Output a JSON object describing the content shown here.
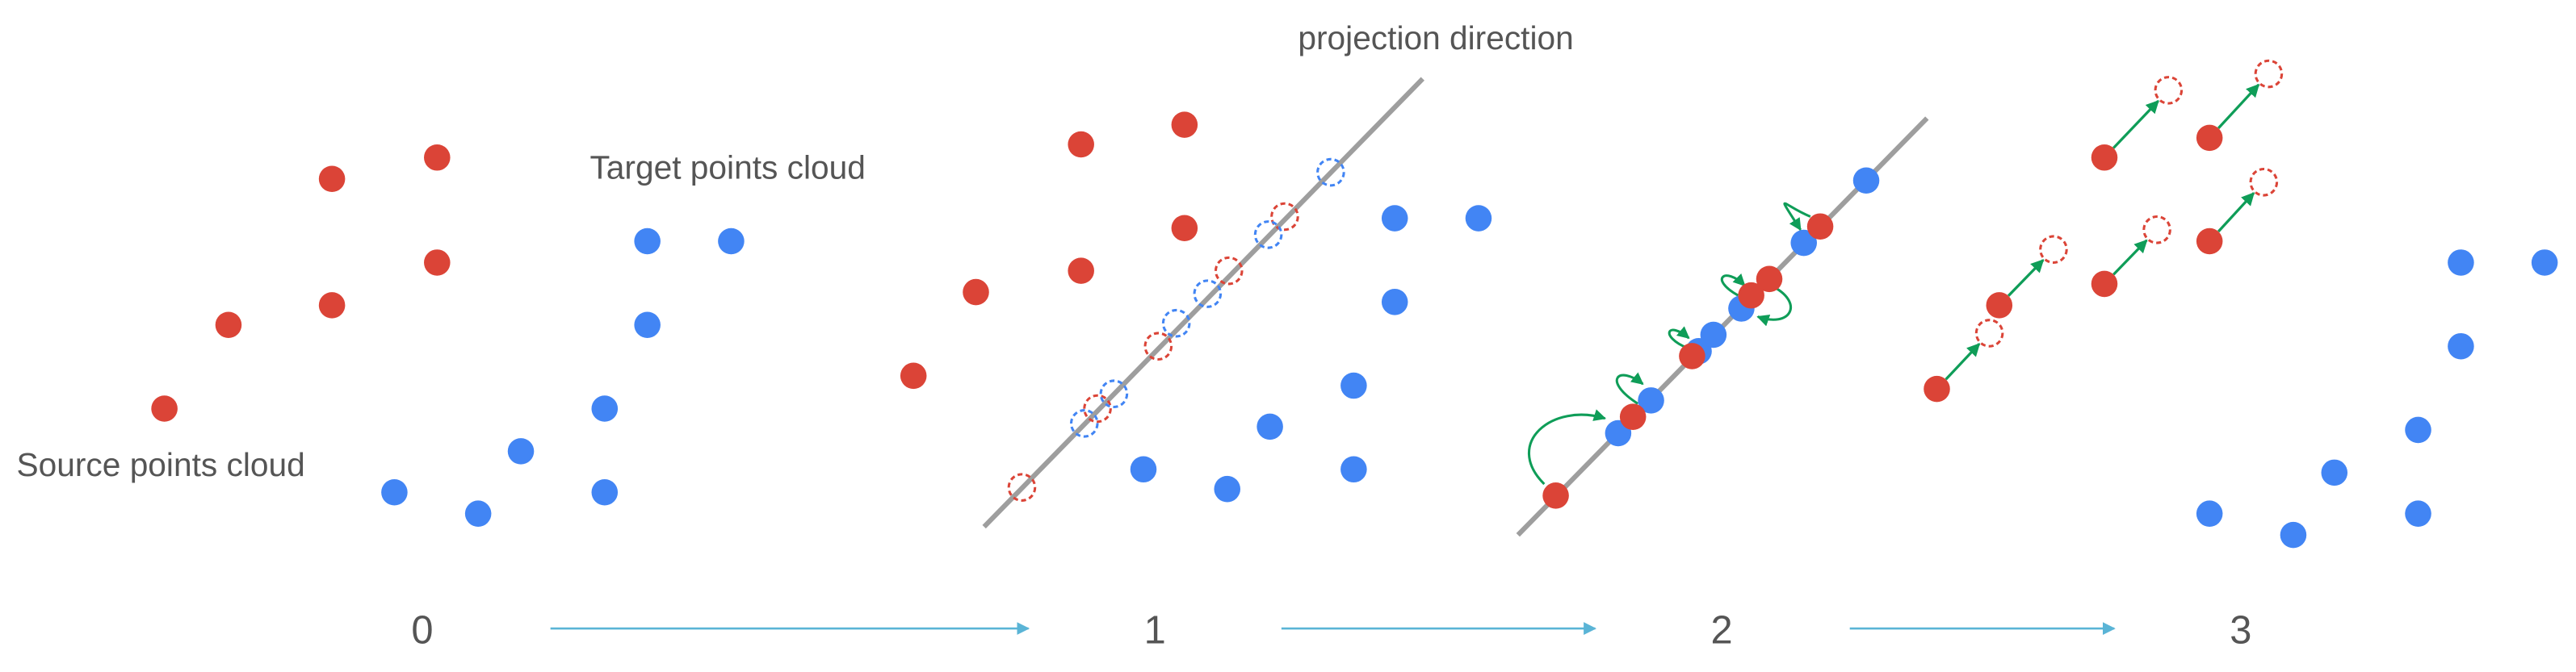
{
  "labels": {
    "projection": "projection direction",
    "target": "Target points cloud",
    "source": "Source points cloud"
  },
  "steps": [
    "0",
    "1",
    "2",
    "3"
  ]
}
